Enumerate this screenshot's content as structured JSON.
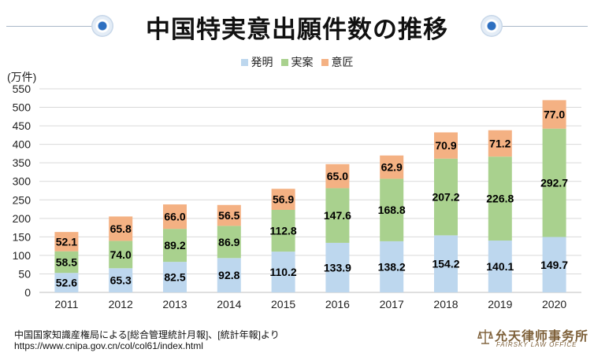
{
  "title": "中国特実意出願件数の推移",
  "unit_label": "(万件)",
  "colors": {
    "invention": "#bdd7ee",
    "utility": "#a9d18e",
    "design": "#f4b183"
  },
  "source": {
    "line1": "中国国家知識産権局による[総合管理統計月報]、[統計年報]より",
    "line2": "https://www.cnipa.gov.cn/col/col61/index.html"
  },
  "logo": {
    "name": "允天律师事务所",
    "english": "FAIRSKY LAW OFFICE"
  },
  "chart_data": {
    "type": "bar",
    "stacked": true,
    "title": "中国特実意出願件数の推移",
    "xlabel": "",
    "ylabel": "(万件)",
    "ylim": [
      0,
      550
    ],
    "ytick_step": 50,
    "grid": true,
    "legend_position": "top-center",
    "categories": [
      "2011",
      "2012",
      "2013",
      "2014",
      "2015",
      "2016",
      "2017",
      "2018",
      "2019",
      "2020"
    ],
    "series": [
      {
        "name": "発明",
        "color_key": "invention",
        "values": [
          52.6,
          65.3,
          82.5,
          92.8,
          110.2,
          133.9,
          138.2,
          154.2,
          140.1,
          149.7
        ]
      },
      {
        "name": "実案",
        "color_key": "utility",
        "values": [
          58.5,
          74.0,
          89.2,
          86.9,
          112.8,
          147.6,
          168.8,
          207.2,
          226.8,
          292.7
        ]
      },
      {
        "name": "意匠",
        "color_key": "design",
        "values": [
          52.1,
          65.8,
          66.0,
          56.5,
          56.9,
          65.0,
          62.9,
          70.9,
          71.2,
          77.0
        ]
      }
    ]
  }
}
